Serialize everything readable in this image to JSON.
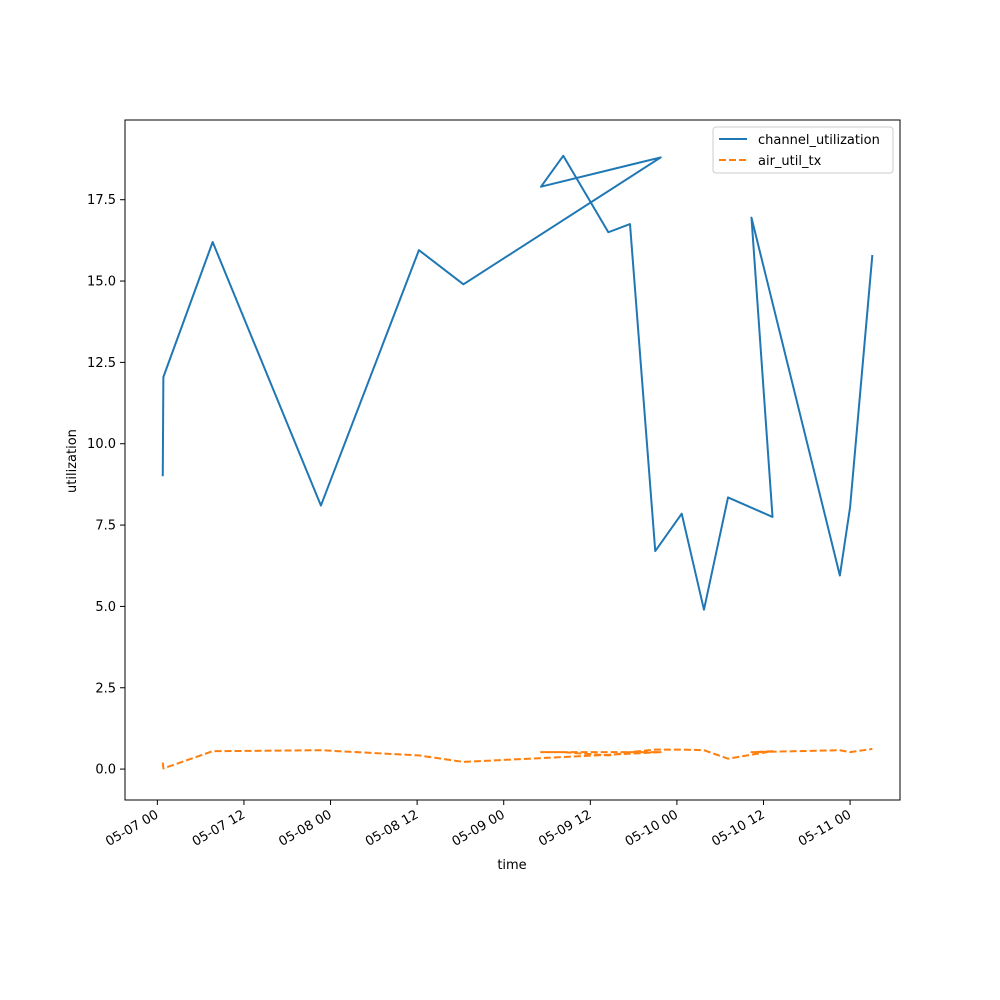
{
  "chart_data": {
    "type": "line",
    "title": "",
    "xlabel": "time",
    "ylabel": "utilization",
    "x_tick_labels": [
      "05-07 00",
      "05-07 12",
      "05-08 00",
      "05-08 12",
      "05-09 00",
      "05-09 12",
      "05-10 00",
      "05-10 12",
      "05-11 00"
    ],
    "y_tick_labels": [
      "0.0",
      "2.5",
      "5.0",
      "7.5",
      "10.0",
      "12.5",
      "15.0",
      "17.5"
    ],
    "x_range": [
      "2024-05-06 19:31",
      "2024-05-11 06:55"
    ],
    "ylim": [
      -0.95,
      19.95
    ],
    "grid": false,
    "legend_position": "top-right",
    "series": [
      {
        "name": "channel_utilization",
        "color": "#1f77b4",
        "line_style": "solid",
        "points": [
          {
            "x": "2024-05-07 00:45",
            "y": 9.0
          },
          {
            "x": "2024-05-07 00:50",
            "y": 12.05
          },
          {
            "x": "2024-05-07 07:40",
            "y": 16.2
          },
          {
            "x": "2024-05-07 22:40",
            "y": 8.1
          },
          {
            "x": "2024-05-08 12:15",
            "y": 15.95
          },
          {
            "x": "2024-05-08 18:25",
            "y": 14.9
          },
          {
            "x": "2024-05-09 21:45",
            "y": 18.8
          },
          {
            "x": "2024-05-09 05:10",
            "y": 17.9
          },
          {
            "x": "2024-05-09 08:15",
            "y": 18.85
          },
          {
            "x": "2024-05-09 14:30",
            "y": 16.5
          },
          {
            "x": "2024-05-09 17:30",
            "y": 16.75
          },
          {
            "x": "2024-05-09 21:00",
            "y": 6.7
          },
          {
            "x": "2024-05-10 00:40",
            "y": 7.85
          },
          {
            "x": "2024-05-10 03:45",
            "y": 4.9
          },
          {
            "x": "2024-05-10 07:05",
            "y": 8.35
          },
          {
            "x": "2024-05-10 13:15",
            "y": 7.75
          },
          {
            "x": "2024-05-10 10:20",
            "y": 16.95
          },
          {
            "x": "2024-05-10 22:35",
            "y": 5.95
          },
          {
            "x": "2024-05-11 00:00",
            "y": 8.05
          },
          {
            "x": "2024-05-11 03:05",
            "y": 15.8
          }
        ]
      },
      {
        "name": "air_util_tx",
        "color": "#ff7f0e",
        "line_style": "dashed",
        "points": [
          {
            "x": "2024-05-07 00:45",
            "y": 0.2
          },
          {
            "x": "2024-05-07 00:50",
            "y": 0.02
          },
          {
            "x": "2024-05-07 07:40",
            "y": 0.55
          },
          {
            "x": "2024-05-07 22:40",
            "y": 0.58
          },
          {
            "x": "2024-05-08 12:15",
            "y": 0.42
          },
          {
            "x": "2024-05-08 18:25",
            "y": 0.22
          },
          {
            "x": "2024-05-09 21:45",
            "y": 0.52
          },
          {
            "x": "2024-05-09 05:10",
            "y": 0.52
          },
          {
            "x": "2024-05-09 08:15",
            "y": 0.52
          },
          {
            "x": "2024-05-09 14:30",
            "y": 0.42
          },
          {
            "x": "2024-05-09 17:30",
            "y": 0.52
          },
          {
            "x": "2024-05-09 21:00",
            "y": 0.6
          },
          {
            "x": "2024-05-10 00:40",
            "y": 0.6
          },
          {
            "x": "2024-05-10 03:45",
            "y": 0.58
          },
          {
            "x": "2024-05-10 07:05",
            "y": 0.32
          },
          {
            "x": "2024-05-10 13:15",
            "y": 0.55
          },
          {
            "x": "2024-05-10 10:20",
            "y": 0.52
          },
          {
            "x": "2024-05-10 22:35",
            "y": 0.58
          },
          {
            "x": "2024-05-11 00:00",
            "y": 0.52
          },
          {
            "x": "2024-05-11 03:05",
            "y": 0.62
          }
        ]
      }
    ]
  }
}
